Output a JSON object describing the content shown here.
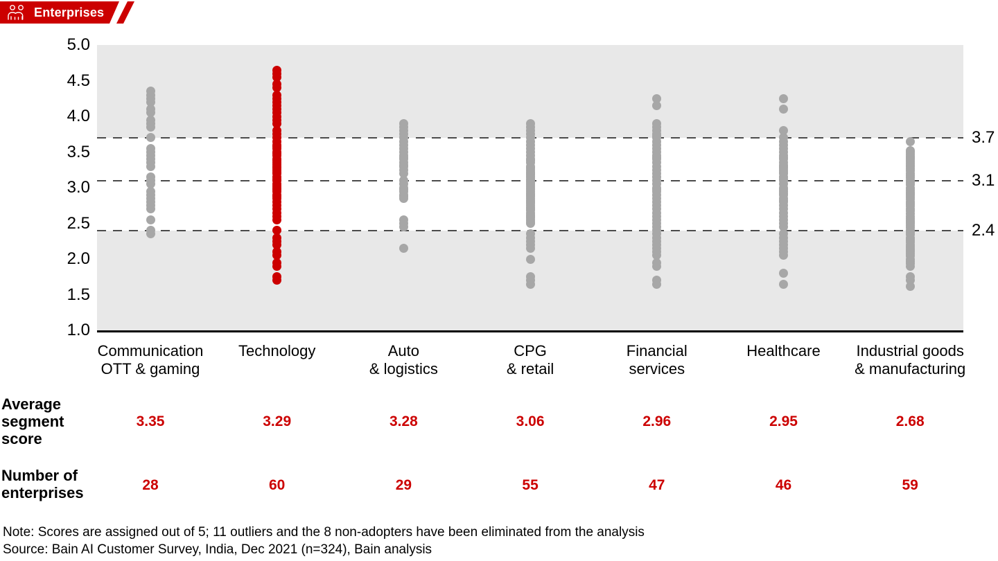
{
  "badge": {
    "label": "Enterprises",
    "color": "#cc0000",
    "icon": "people-icon"
  },
  "rows": {
    "avg_label_lines": [
      "Average",
      "segment",
      "score"
    ],
    "n_label_lines": [
      "Number of",
      "enterprises"
    ]
  },
  "footer": {
    "note": "Note: Scores are assigned out of 5; 11 outliers and the 8 non-adopters have been eliminated from the analysis",
    "source": "Source: Bain AI Customer Survey, India, Dec 2021 (n=324), Bain analysis"
  },
  "chart_data": {
    "type": "scatter",
    "subtype": "strip-plot",
    "title": "",
    "ylim": [
      1.0,
      5.0
    ],
    "yticks": [
      5.0,
      4.5,
      4.0,
      3.5,
      3.0,
      2.5,
      2.0,
      1.5,
      1.0
    ],
    "threshold_lines": [
      3.7,
      3.1,
      2.4
    ],
    "shaded_bands": [
      [
        3.7,
        5.0
      ],
      [
        1.0,
        2.4
      ]
    ],
    "grid": "dashed-thresholds-only",
    "colors": {
      "dot": "#a7a7a7",
      "highlight_dot": "#cc0000",
      "band": "#e8e8e8"
    },
    "series": [
      {
        "label_lines": [
          "Communication",
          "OTT & gaming"
        ],
        "highlight": false,
        "avg_score": "3.35",
        "n": "28",
        "values": [
          4.35,
          4.3,
          4.25,
          4.2,
          4.1,
          4.05,
          3.95,
          3.9,
          3.85,
          3.7,
          3.55,
          3.5,
          3.45,
          3.4,
          3.35,
          3.3,
          3.15,
          3.1,
          3.05,
          2.95,
          2.9,
          2.85,
          2.8,
          2.75,
          2.7,
          2.55,
          2.4,
          2.35
        ]
      },
      {
        "label_lines": [
          "Technology"
        ],
        "highlight": true,
        "avg_score": "3.29",
        "n": "60",
        "values": [
          4.65,
          4.6,
          4.55,
          4.45,
          4.4,
          4.3,
          4.25,
          4.2,
          4.15,
          4.1,
          4.05,
          4.0,
          3.95,
          3.9,
          3.8,
          3.75,
          3.7,
          3.65,
          3.6,
          3.58,
          3.55,
          3.5,
          3.48,
          3.45,
          3.4,
          3.38,
          3.35,
          3.33,
          3.3,
          3.28,
          3.25,
          3.22,
          3.2,
          3.15,
          3.12,
          3.1,
          3.05,
          3.02,
          3.0,
          2.98,
          2.95,
          2.9,
          2.88,
          2.85,
          2.8,
          2.75,
          2.7,
          2.65,
          2.6,
          2.55,
          2.4,
          2.3,
          2.25,
          2.2,
          2.1,
          2.05,
          1.95,
          1.9,
          1.75,
          1.7
        ]
      },
      {
        "label_lines": [
          "Auto",
          "& logistics"
        ],
        "highlight": false,
        "avg_score": "3.28",
        "n": "29",
        "values": [
          3.9,
          3.85,
          3.8,
          3.75,
          3.7,
          3.65,
          3.6,
          3.55,
          3.5,
          3.45,
          3.42,
          3.4,
          3.35,
          3.32,
          3.3,
          3.25,
          3.2,
          3.1,
          3.05,
          3.0,
          2.98,
          2.95,
          2.9,
          2.88,
          2.85,
          2.55,
          2.5,
          2.45,
          2.15
        ]
      },
      {
        "label_lines": [
          "CPG",
          "& retail"
        ],
        "highlight": false,
        "avg_score": "3.06",
        "n": "55",
        "values": [
          3.9,
          3.85,
          3.8,
          3.75,
          3.7,
          3.65,
          3.6,
          3.55,
          3.5,
          3.45,
          3.4,
          3.38,
          3.35,
          3.3,
          3.28,
          3.25,
          3.22,
          3.2,
          3.18,
          3.15,
          3.12,
          3.1,
          3.08,
          3.05,
          3.02,
          3.0,
          2.98,
          2.95,
          2.92,
          2.9,
          2.88,
          2.85,
          2.82,
          2.8,
          2.78,
          2.75,
          2.72,
          2.7,
          2.68,
          2.65,
          2.62,
          2.6,
          2.58,
          2.55,
          2.52,
          2.5,
          2.35,
          2.3,
          2.25,
          2.2,
          2.15,
          2.0,
          1.75,
          1.7,
          1.65
        ]
      },
      {
        "label_lines": [
          "Financial",
          "services"
        ],
        "highlight": false,
        "avg_score": "2.96",
        "n": "47",
        "values": [
          4.25,
          4.15,
          3.9,
          3.85,
          3.8,
          3.75,
          3.72,
          3.7,
          3.65,
          3.6,
          3.55,
          3.5,
          3.45,
          3.42,
          3.4,
          3.35,
          3.3,
          3.25,
          3.2,
          3.15,
          3.1,
          3.05,
          3.0,
          2.98,
          2.95,
          2.9,
          2.85,
          2.8,
          2.75,
          2.7,
          2.65,
          2.6,
          2.55,
          2.5,
          2.45,
          2.4,
          2.35,
          2.3,
          2.25,
          2.2,
          2.15,
          2.1,
          2.05,
          1.95,
          1.9,
          1.7,
          1.65
        ]
      },
      {
        "label_lines": [
          "Healthcare"
        ],
        "highlight": false,
        "avg_score": "2.95",
        "n": "46",
        "values": [
          4.25,
          4.1,
          3.8,
          3.7,
          3.65,
          3.6,
          3.55,
          3.5,
          3.45,
          3.42,
          3.4,
          3.35,
          3.32,
          3.3,
          3.28,
          3.25,
          3.22,
          3.2,
          3.15,
          3.12,
          3.1,
          3.05,
          3.0,
          2.98,
          2.95,
          2.92,
          2.9,
          2.85,
          2.82,
          2.8,
          2.75,
          2.7,
          2.65,
          2.6,
          2.55,
          2.5,
          2.45,
          2.35,
          2.3,
          2.25,
          2.2,
          2.15,
          2.1,
          2.05,
          1.8,
          1.65
        ]
      },
      {
        "label_lines": [
          "Industrial goods",
          "& manufacturing"
        ],
        "highlight": false,
        "avg_score": "2.68",
        "n": "59",
        "values": [
          3.65,
          3.52,
          3.5,
          3.47,
          3.44,
          3.42,
          3.4,
          3.37,
          3.34,
          3.32,
          3.3,
          3.27,
          3.24,
          3.2,
          3.17,
          3.14,
          3.1,
          3.07,
          3.04,
          3.0,
          2.97,
          2.94,
          2.92,
          2.9,
          2.87,
          2.84,
          2.8,
          2.77,
          2.74,
          2.7,
          2.67,
          2.64,
          2.6,
          2.57,
          2.54,
          2.52,
          2.5,
          2.47,
          2.44,
          2.4,
          2.37,
          2.34,
          2.3,
          2.27,
          2.24,
          2.2,
          2.17,
          2.14,
          2.12,
          2.1,
          2.07,
          2.04,
          2.0,
          1.97,
          1.94,
          1.9,
          1.75,
          1.7,
          1.62
        ]
      }
    ]
  }
}
